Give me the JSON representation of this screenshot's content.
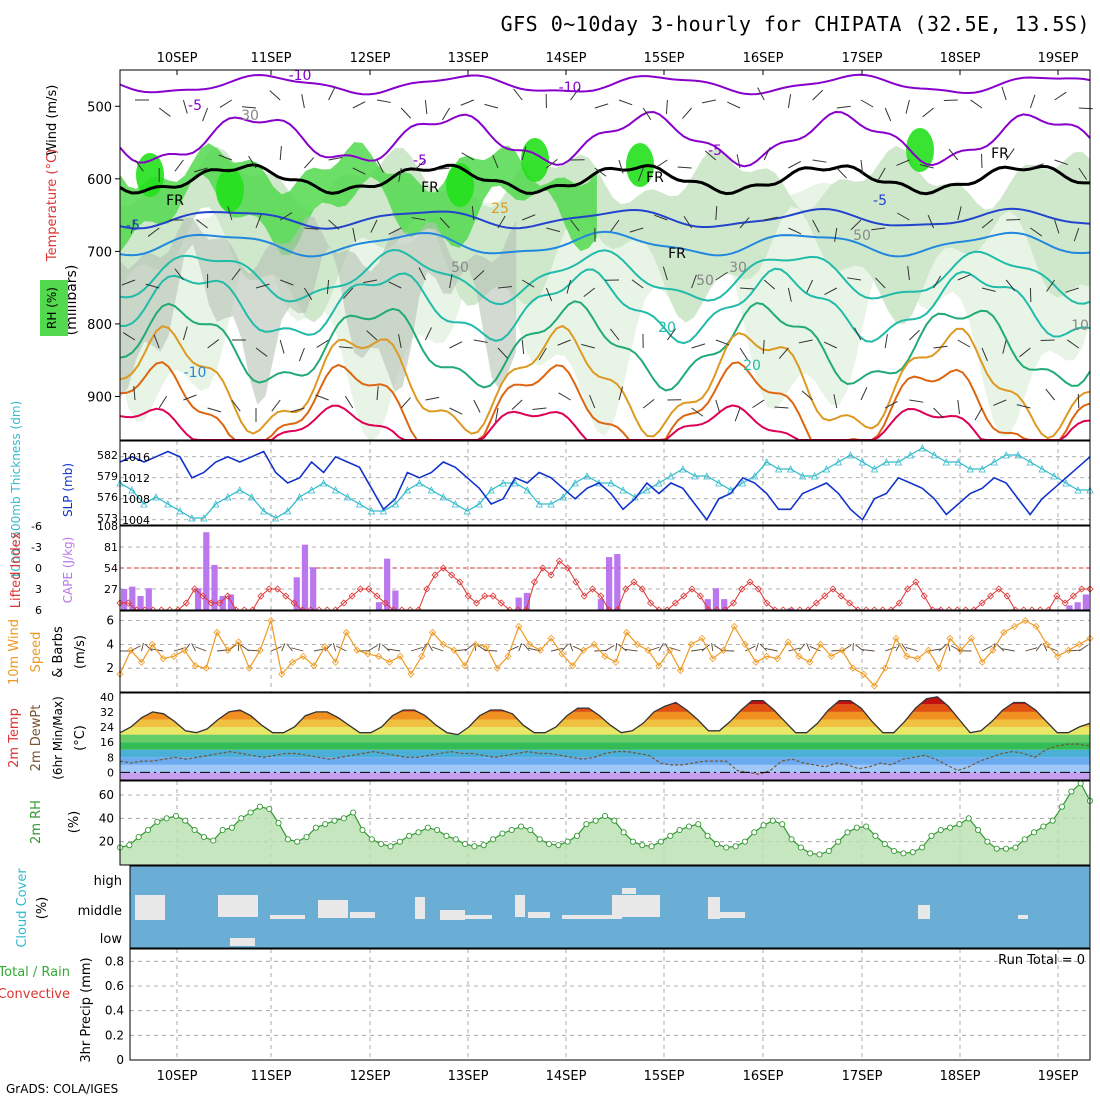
{
  "title": "GFS 0~10day 3-hourly for CHIPATA (32.5E, 13.5S)",
  "credit": "GrADS: COLA/IGES",
  "colors": {
    "rh_light": "#e8f5e6",
    "rh_mid": "#cfe8cc",
    "rh_green": "#52d94e",
    "rh_bright": "#22e01c",
    "rh_grey": "#b4c2b4",
    "t_purple": "#8800cc",
    "t_blue": "#2244cc",
    "t_lightblue": "#2288dd",
    "t_teal": "#22bbaa",
    "t_green": "#22aa77",
    "t_orange": "#dd9922",
    "t_darkorange": "#dd6611",
    "t_red": "#dd0055",
    "slp": "#1133cc",
    "thickness": "#33bbcc",
    "cape": "#bb77ee",
    "lifted": "#dd3333",
    "wind": "#ee9922",
    "rh2m": "#339933",
    "cloud_bg": "#6aaed6",
    "cloud": "#e8e8e8",
    "grid": "#999999"
  },
  "chart_data": [
    {
      "type": "heatmap",
      "name": "upper-air",
      "x_ticks": [
        "10SEP",
        "11SEP",
        "12SEP",
        "13SEP",
        "14SEP",
        "15SEP",
        "16SEP",
        "17SEP",
        "18SEP",
        "19SEP"
      ],
      "ylabel_wind": "Wind (m/s)",
      "ylabel_temp": "Temperature (°C)",
      "ylabel_rh": "RH (%)",
      "ylabel_p": "(millibars)",
      "y_ticks": [
        "500",
        "600",
        "700",
        "800",
        "900"
      ],
      "ylim": [
        960,
        450
      ],
      "contour_labels": [
        "-10",
        "-10",
        "-5",
        "-5",
        "-5",
        "-5",
        "-5",
        "FR",
        "FR",
        "FR",
        "FR",
        "FR",
        "-10",
        "20",
        "20",
        "25",
        "50",
        "50",
        "50",
        "30",
        "30",
        "10"
      ]
    },
    {
      "type": "line",
      "name": "slp-thickness",
      "ylabel_left": "1000~500mb Thickness (dm)",
      "ylabel_right": "SLP (mb)",
      "left_ticks": [
        "582",
        "579",
        "576",
        "573"
      ],
      "right_ticks": [
        "1016",
        "1012",
        "1008",
        "1004"
      ],
      "left_range": [
        572,
        584
      ],
      "right_range": [
        1003,
        1019
      ],
      "slp": [
        1015,
        1016,
        1015,
        1016,
        1017,
        1016,
        1012,
        1013,
        1015,
        1016,
        1015,
        1016,
        1017,
        1013,
        1011,
        1012,
        1015,
        1013,
        1016,
        1015,
        1014,
        1010,
        1006,
        1008,
        1013,
        1012,
        1013,
        1015,
        1014,
        1012,
        1010,
        1007,
        1008,
        1012,
        1011,
        1013,
        1012,
        1010,
        1008,
        1010,
        1011,
        1009,
        1006,
        1008,
        1011,
        1009,
        1011,
        1010,
        1007,
        1004,
        1008,
        1009,
        1012,
        1011,
        1009,
        1006,
        1006,
        1009,
        1010,
        1011,
        1009,
        1006,
        1004,
        1008,
        1009,
        1012,
        1011,
        1010,
        1008,
        1005,
        1007,
        1009,
        1010,
        1012,
        1011,
        1008,
        1005,
        1008,
        1010,
        1012,
        1014,
        1016
      ],
      "thickness": [
        578,
        577,
        575,
        576,
        575,
        574,
        573,
        573,
        575,
        576,
        577,
        576,
        574,
        573,
        574,
        576,
        577,
        578,
        577,
        576,
        575,
        574,
        574,
        575,
        577,
        578,
        577,
        576,
        575,
        574,
        575,
        577,
        578,
        578,
        577,
        575,
        575,
        576,
        578,
        579,
        578,
        578,
        577,
        576,
        577,
        578,
        579,
        580,
        579,
        579,
        578,
        577,
        578,
        579,
        581,
        580,
        580,
        579,
        579,
        580,
        581,
        582,
        581,
        580,
        581,
        581,
        582,
        583,
        582,
        581,
        581,
        580,
        580,
        581,
        582,
        582,
        581,
        580,
        579,
        578,
        577,
        577
      ]
    },
    {
      "type": "bar",
      "name": "cape-lifted",
      "ylabel_left": "Lifted Index",
      "ylabel_right": "CAPE (J/kg)",
      "left_ticks": [
        "-6",
        "-3",
        "0",
        "3",
        "6"
      ],
      "right_ticks": [
        "108",
        "81",
        "54",
        "27"
      ],
      "cape_range": [
        0,
        108
      ],
      "li_range": [
        -6,
        6
      ],
      "cape": [
        27,
        30,
        18,
        28,
        0,
        0,
        0,
        0,
        0,
        28,
        100,
        58,
        18,
        20,
        0,
        0,
        0,
        0,
        0,
        0,
        0,
        42,
        84,
        55,
        0,
        0,
        0,
        0,
        0,
        0,
        0,
        10,
        66,
        25,
        0,
        0,
        0,
        0,
        0,
        0,
        0,
        0,
        0,
        0,
        0,
        0,
        0,
        0,
        16,
        22,
        0,
        0,
        0,
        0,
        0,
        0,
        0,
        0,
        14,
        68,
        72,
        0,
        0,
        0,
        0,
        0,
        0,
        0,
        0,
        0,
        0,
        14,
        28,
        14,
        0,
        0,
        0,
        0,
        0,
        0,
        0,
        2,
        0,
        0,
        0,
        0,
        0,
        0,
        0,
        0,
        0,
        0,
        0,
        0,
        0,
        0,
        0,
        0,
        0,
        2,
        0,
        0,
        0,
        0,
        0,
        0,
        0,
        0,
        0,
        0,
        0,
        0,
        0,
        0,
        0,
        6,
        10,
        20
      ],
      "lifted_index": [
        5,
        5,
        6,
        6,
        6,
        6,
        6,
        6,
        5,
        3,
        4,
        5,
        5,
        4,
        6,
        6,
        6,
        4,
        3,
        3,
        4,
        5,
        6,
        6,
        6,
        6,
        6,
        5,
        4,
        3,
        3,
        4,
        5,
        6,
        6,
        6,
        6,
        3,
        1,
        0,
        1,
        2,
        4,
        5,
        4,
        4,
        5,
        6,
        6,
        6,
        2,
        0,
        1,
        -1,
        0,
        2,
        4,
        3,
        4,
        6,
        6,
        3,
        2,
        3,
        5,
        6,
        6,
        5,
        4,
        3,
        4,
        6,
        6,
        6,
        5,
        3,
        2,
        3,
        5,
        6,
        6,
        6,
        6,
        6,
        5,
        4,
        3,
        4,
        5,
        6,
        6,
        6,
        6,
        6,
        5,
        3,
        2,
        4,
        6,
        6,
        6,
        6,
        6,
        6,
        5,
        4,
        3,
        4,
        6,
        6,
        6,
        6,
        6,
        4,
        5,
        4,
        3,
        3
      ]
    },
    {
      "type": "line",
      "name": "wind10m",
      "ylabel": "10m Wind Speed (m/s) & Barbs",
      "y_ticks": [
        "6",
        "4",
        "2"
      ],
      "ylim": [
        0,
        6.8
      ],
      "speed": [
        1.5,
        3.5,
        2.5,
        4.0,
        2.8,
        3.0,
        3.5,
        2.2,
        2.0,
        5.0,
        3.5,
        4.2,
        2.0,
        3.5,
        6.0,
        1.5,
        2.5,
        3.0,
        2.2,
        3.8,
        2.5,
        5.0,
        3.5,
        3.2,
        3.0,
        2.5,
        3.0,
        1.5,
        3.0,
        5.0,
        4.0,
        3.5,
        2.2,
        4.0,
        3.8,
        2.0,
        3.0,
        5.5,
        4.0,
        3.5,
        4.5,
        3.2,
        2.2,
        3.5,
        4.0,
        3.0,
        2.5,
        5.0,
        4.0,
        3.5,
        2.2,
        3.5,
        1.8,
        4.0,
        4.5,
        2.8,
        3.5,
        5.5,
        4.0,
        2.5,
        3.0,
        2.8,
        4.2,
        3.0,
        2.5,
        4.0,
        3.0,
        3.5,
        2.0,
        1.5,
        0.5,
        2.0,
        4.5,
        3.0,
        2.8,
        3.5,
        2.0,
        4.5,
        3.5,
        4.5,
        2.5,
        3.5,
        5.0,
        5.5,
        6.0,
        5.5,
        4.0,
        3.0,
        3.5,
        4.0,
        4.5
      ]
    },
    {
      "type": "area",
      "name": "temp2m",
      "ylabel": "2m Temp 2m DewPt (6hr Min/Max) (°C)",
      "y_ticks": [
        "40",
        "32",
        "24",
        "16",
        "8",
        "0"
      ],
      "ylim": [
        -4,
        42
      ],
      "temp": [
        21,
        24,
        29,
        32,
        31,
        27,
        22,
        21,
        23,
        28,
        32,
        33,
        30,
        25,
        21,
        21,
        24,
        30,
        32,
        32,
        29,
        25,
        21,
        21,
        24,
        30,
        33,
        33,
        30,
        25,
        21,
        20,
        24,
        30,
        33,
        33,
        31,
        25,
        21,
        21,
        24,
        30,
        34,
        34,
        30,
        25,
        21,
        22,
        26,
        32,
        35,
        37,
        33,
        28,
        22,
        22,
        27,
        33,
        38,
        38,
        33,
        27,
        21,
        21,
        26,
        33,
        38,
        38,
        34,
        27,
        21,
        21,
        27,
        34,
        39,
        40,
        35,
        28,
        21,
        22,
        27,
        33,
        37,
        37,
        33,
        27,
        21,
        21,
        24,
        26
      ],
      "dewpt": [
        6,
        5,
        6,
        6,
        7,
        8,
        7,
        8,
        9,
        10,
        11,
        10,
        9,
        8,
        9,
        10,
        10,
        9,
        8,
        7,
        8,
        9,
        10,
        11,
        10,
        9,
        8,
        8,
        9,
        10,
        11,
        10,
        10,
        9,
        8,
        9,
        10,
        11,
        10,
        10,
        9,
        8,
        7,
        8,
        10,
        11,
        11,
        10,
        9,
        5,
        4,
        4,
        5,
        6,
        6,
        6,
        1,
        0,
        -1,
        1,
        6,
        7,
        5,
        4,
        3,
        5,
        4,
        2,
        3,
        5,
        4,
        7,
        8,
        9,
        7,
        4,
        1,
        3,
        6,
        8,
        10,
        11,
        10,
        8,
        12,
        14,
        15,
        15,
        14
      ]
    },
    {
      "type": "area",
      "name": "rh2m",
      "ylabel": "2m RH (%)",
      "y_ticks": [
        "60",
        "40",
        "20"
      ],
      "ylim": [
        0,
        72
      ],
      "rh": [
        15,
        17,
        24,
        30,
        37,
        40,
        42,
        38,
        30,
        24,
        21,
        30,
        32,
        40,
        45,
        50,
        48,
        36,
        22,
        20,
        24,
        32,
        35,
        38,
        40,
        45,
        30,
        22,
        18,
        16,
        20,
        25,
        28,
        32,
        30,
        25,
        22,
        18,
        16,
        17,
        22,
        27,
        30,
        33,
        30,
        22,
        18,
        17,
        20,
        25,
        35,
        38,
        42,
        38,
        28,
        20,
        17,
        16,
        20,
        25,
        30,
        33,
        35,
        25,
        18,
        15,
        16,
        20,
        28,
        34,
        38,
        35,
        22,
        15,
        10,
        9,
        12,
        20,
        28,
        32,
        33,
        25,
        18,
        12,
        10,
        11,
        15,
        25,
        30,
        32,
        35,
        40,
        30,
        20,
        14,
        14,
        15,
        22,
        28,
        33,
        38,
        50,
        63,
        70,
        55
      ]
    },
    {
      "type": "bar",
      "name": "cloud",
      "ylabel": "Cloud Cover (%)",
      "y_ticks": [
        "high",
        "middle",
        "low"
      ]
    },
    {
      "type": "bar",
      "name": "precip",
      "ylabel": "3hr Precip (mm)",
      "legend_total": "Total / Rain",
      "legend_conv": "Convective",
      "y_ticks": [
        "0.8",
        "0.6",
        "0.4",
        "0.2",
        "0"
      ],
      "ylim": [
        0,
        0.9
      ],
      "run_total": "Run Total = 0",
      "values": []
    }
  ]
}
